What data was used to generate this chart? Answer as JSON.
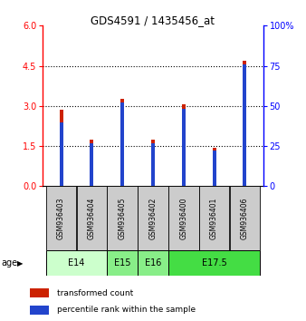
{
  "title": "GDS4591 / 1435456_at",
  "samples": [
    "GSM936403",
    "GSM936404",
    "GSM936405",
    "GSM936402",
    "GSM936400",
    "GSM936401",
    "GSM936406"
  ],
  "transformed_counts": [
    2.85,
    1.75,
    3.25,
    1.75,
    3.05,
    1.45,
    4.7
  ],
  "percentile_ranks": [
    40,
    27,
    52,
    27,
    48,
    22,
    76
  ],
  "ylim_left": [
    0,
    6
  ],
  "ylim_right": [
    0,
    100
  ],
  "yticks_left": [
    0,
    1.5,
    3.0,
    4.5,
    6.0
  ],
  "yticks_right": [
    0,
    25,
    50,
    75,
    100
  ],
  "bar_color_red": "#cc2200",
  "bar_color_blue": "#2244cc",
  "bar_width": 0.12,
  "blue_bar_width": 0.12,
  "sample_bg_color": "#cccccc",
  "age_groups": [
    {
      "label": "E14",
      "start": 0,
      "end": 1,
      "color": "#ccffcc"
    },
    {
      "label": "E15",
      "start": 2,
      "end": 2,
      "color": "#88ee88"
    },
    {
      "label": "E16",
      "start": 3,
      "end": 3,
      "color": "#88ee88"
    },
    {
      "label": "E17.5",
      "start": 4,
      "end": 6,
      "color": "#44dd44"
    }
  ]
}
